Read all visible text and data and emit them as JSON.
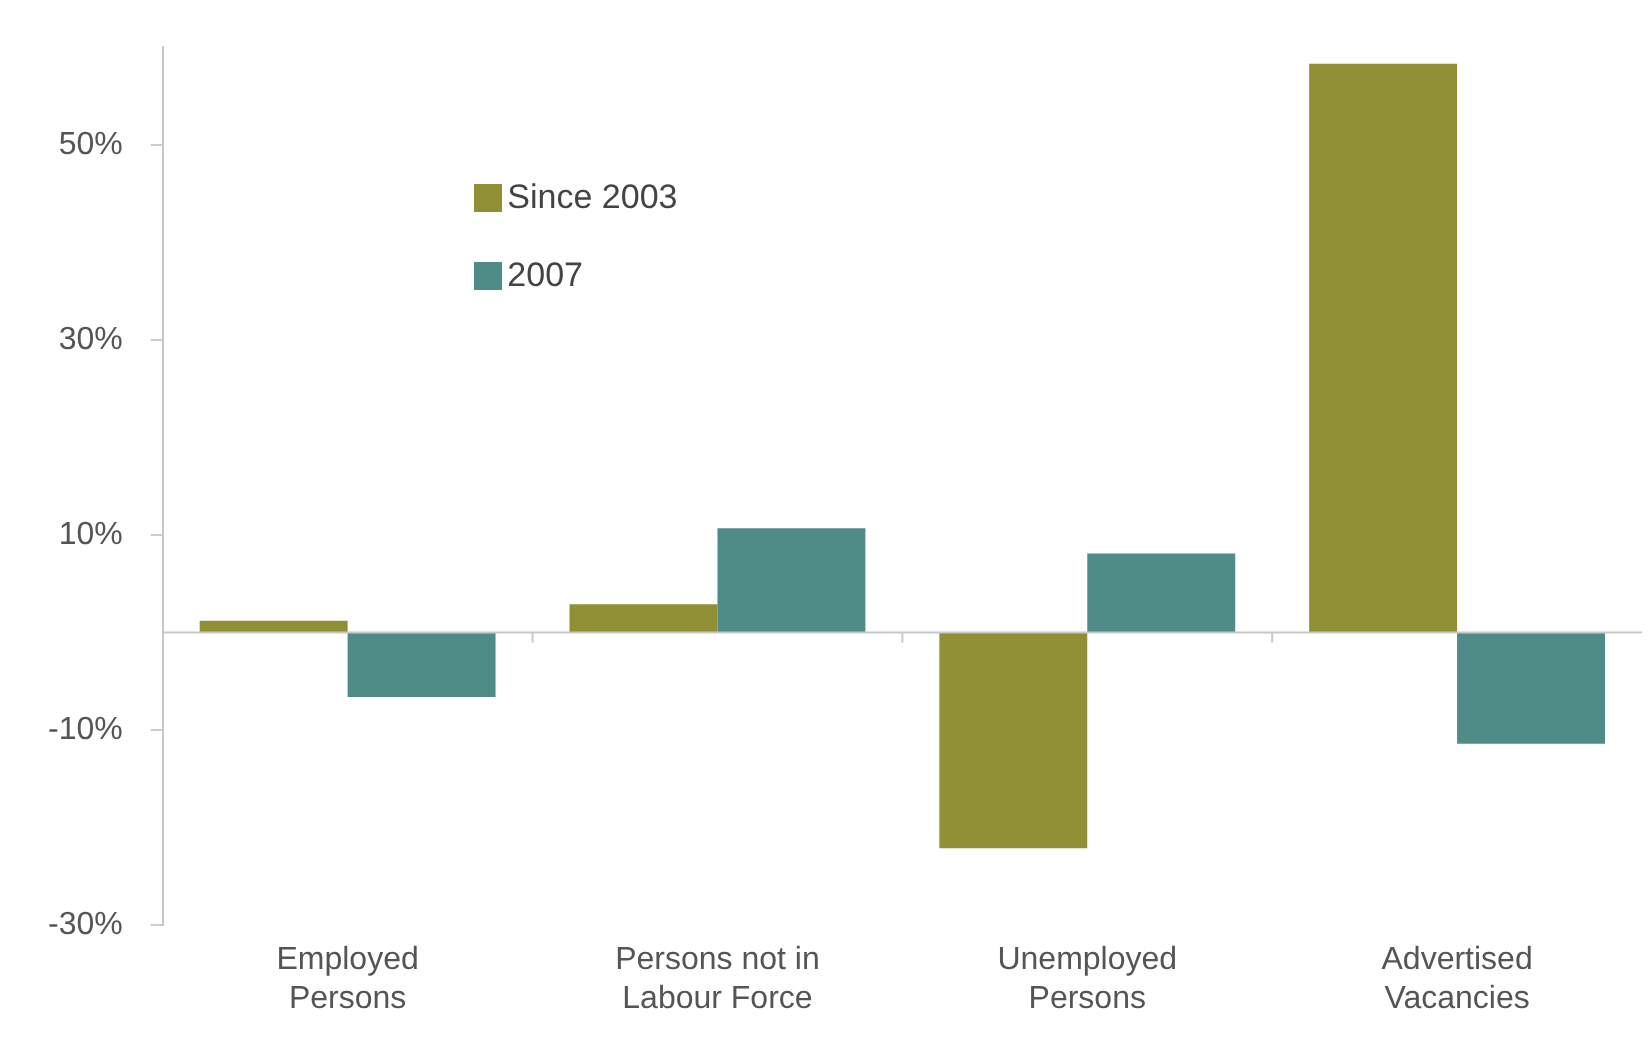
{
  "chart_data": {
    "type": "bar",
    "categories": [
      "Employed Persons",
      "Persons not in Labour Force",
      "Unemployed Persons",
      "Advertised Vacancies"
    ],
    "series": [
      {
        "name": "Since 2003",
        "color": "#8f9035",
        "values": [
          1.2,
          2.9,
          -22.1,
          58.3
        ]
      },
      {
        "name": "2007",
        "color": "#4f8c88",
        "values": [
          -6.6,
          10.7,
          8.1,
          -11.4
        ]
      }
    ],
    "ylim": [
      -30,
      60
    ],
    "yticks": [
      {
        "value": -30,
        "label": "-30%"
      },
      {
        "value": -10,
        "label": "-10%"
      },
      {
        "value": 10,
        "label": "10%"
      },
      {
        "value": 30,
        "label": "30%"
      },
      {
        "value": 50,
        "label": "50%"
      }
    ],
    "grid": false,
    "legend": "top left"
  }
}
